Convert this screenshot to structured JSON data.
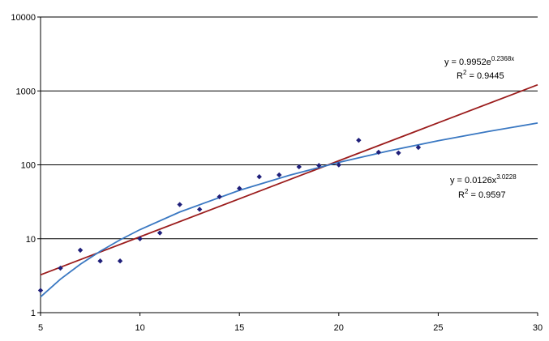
{
  "chart_data": {
    "type": "scatter",
    "xlim": [
      5,
      30
    ],
    "xticks": [
      5,
      10,
      15,
      20,
      25,
      30
    ],
    "ylim": [
      1,
      10000
    ],
    "yticks": [
      1,
      10,
      100,
      1000,
      10000
    ],
    "log_y": true,
    "grid": true,
    "series": [
      {
        "type": "scatter",
        "color": "#1f1f7a",
        "x": [
          5,
          6,
          7,
          8,
          9,
          10,
          11,
          12,
          13,
          14,
          15,
          16,
          17,
          18,
          19,
          20,
          21,
          22,
          23,
          24
        ],
        "values": [
          2,
          4,
          7,
          5,
          5,
          10,
          12,
          29,
          25,
          37,
          48,
          69,
          73,
          94,
          98,
          100,
          215,
          148,
          145,
          172
        ]
      },
      {
        "type": "line",
        "color": "#9b1c1c",
        "x": [
          5,
          10,
          15,
          20,
          25,
          30
        ],
        "values": [
          3.25,
          10.62,
          34.7,
          113.4,
          370.6,
          1210
        ],
        "equation": {
          "text": "y = 0.9952e",
          "sup": "0.2368x"
        },
        "r2": {
          "text": "R",
          "sup": "2",
          "rest": " = 0.9445"
        }
      },
      {
        "type": "line",
        "color": "#3a78c2",
        "x": [
          5,
          6,
          7,
          8,
          9,
          10,
          12,
          15,
          17.5,
          20,
          22.5,
          25,
          27.5,
          30
        ],
        "values": [
          1.634,
          2.835,
          4.52,
          6.77,
          9.66,
          13.28,
          23.0,
          45.2,
          72.1,
          108.0,
          154.0,
          211.9,
          282.6,
          367.6
        ],
        "equation": {
          "text": "y = 0.0126x",
          "sup": "3.0228"
        },
        "r2": {
          "text": "R",
          "sup": "2",
          "rest": " = 0.9597"
        }
      }
    ]
  }
}
